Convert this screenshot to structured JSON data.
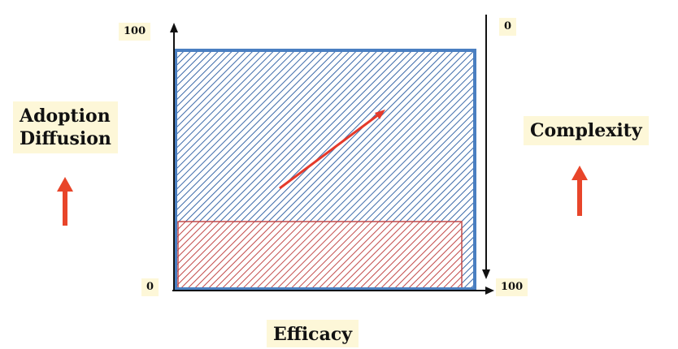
{
  "labels": {
    "left_axis_title_line1": "Adoption",
    "left_axis_title_line2": "Diffusion",
    "right_axis_title": "Complexity",
    "bottom_axis_title": "Efficacy"
  },
  "ticks": {
    "left_top": "100",
    "left_bottom": "0",
    "right_top": "0",
    "right_bottom": "100"
  },
  "colors": {
    "frame_blue": "#4a7fc1",
    "hatch_blue": "#3a68a8",
    "hatch_red": "#c24a4a",
    "trend_arrow": "#e53a2a",
    "side_arrows": "#e8452a",
    "axis_black": "#111111",
    "label_background": "#fdf7d8"
  }
}
